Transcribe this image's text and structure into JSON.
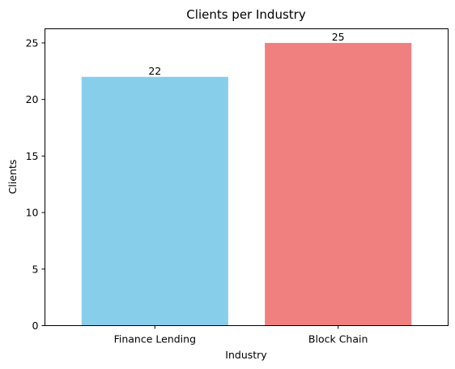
{
  "chart_data": {
    "type": "bar",
    "title": "Clients per Industry",
    "xlabel": "Industry",
    "ylabel": "Clients",
    "categories": [
      "Finance Lending",
      "Block Chain"
    ],
    "values": [
      22,
      25
    ],
    "colors": [
      "#87ceeb",
      "#f08080"
    ],
    "data_labels": [
      "22",
      "25"
    ],
    "ylim": [
      0,
      26.25
    ],
    "yticks": [
      0,
      5,
      10,
      15,
      20,
      25
    ],
    "grid": false,
    "legend": "none"
  }
}
